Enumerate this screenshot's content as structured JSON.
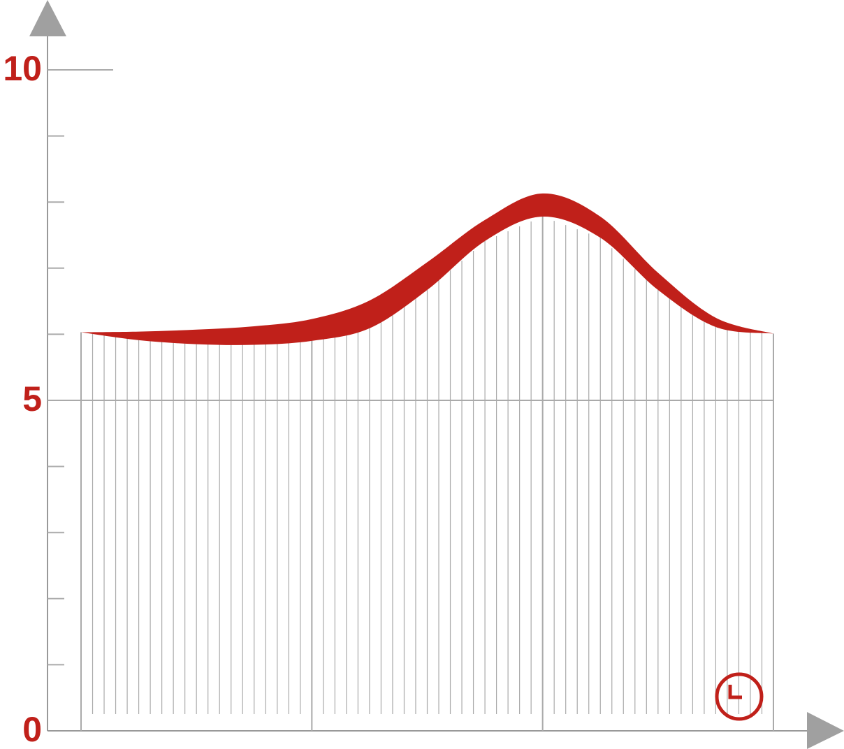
{
  "chart_data": {
    "type": "band",
    "x": [
      0,
      0.25,
      0.5,
      0.75,
      1,
      1.25,
      1.5,
      1.75,
      2,
      2.25,
      2.5,
      2.75,
      3
    ],
    "series": [
      {
        "color": "#c0201a",
        "values": [
          6.03,
          6.04,
          6.07,
          6.12,
          6.23,
          6.51,
          7.09,
          7.73,
          8.13,
          7.78,
          6.93,
          6.25,
          6.01
        ]
      },
      {
        "color": "#c0201a",
        "values": [
          6.03,
          5.91,
          5.85,
          5.84,
          5.9,
          6.09,
          6.67,
          7.41,
          7.78,
          7.46,
          6.67,
          6.11,
          6.01
        ]
      }
    ],
    "xlim": [
      0,
      3
    ],
    "ylim": [
      0,
      10
    ],
    "yticks": [
      0,
      5,
      10
    ],
    "tick_color": "#c0201a"
  }
}
